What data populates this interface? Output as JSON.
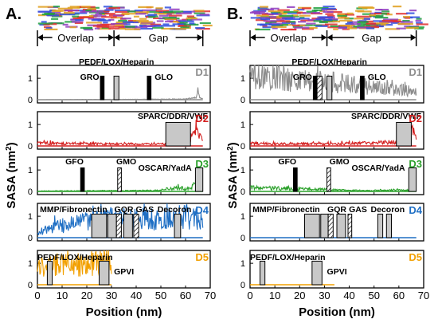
{
  "figure": {
    "panel_labels": [
      "A.",
      "B."
    ],
    "region_labels": {
      "overlap": "Overlap",
      "gap": "Gap"
    },
    "y_axis_label": "SASA (nm",
    "y_axis_label_sup": "2",
    "y_axis_label_end": ")",
    "x_axis_label": "Position (nm)",
    "x_ticks": [
      "0",
      "10",
      "20",
      "30",
      "40",
      "50",
      "60",
      "70"
    ],
    "y_ticks": [
      "0",
      "1"
    ],
    "colors": {
      "D1": "#8c8c8c",
      "D2": "#d42020",
      "D3": "#2aa02a",
      "D4": "#1f6fc4",
      "D5": "#f2a000",
      "box_fill": "#c8c8c8",
      "black": "#000000",
      "microfibril": [
        "#e03030",
        "#3050e0",
        "#20a040",
        "#e0a020",
        "#9040c0"
      ]
    }
  },
  "chart_data": [
    {
      "type": "area",
      "panel": "A.",
      "xlim": [
        0,
        70
      ],
      "ylim": [
        0,
        1.6
      ],
      "xlabel": "Position (nm)",
      "ylabel": "SASA (nm2)",
      "overlap_range": [
        0,
        31
      ],
      "gap_range": [
        31,
        67
      ],
      "rows": [
        {
          "name": "D1",
          "series_extent": [
            0,
            67
          ],
          "profile": [
            [
              0,
              0.0
            ],
            [
              40,
              0.02
            ],
            [
              60,
              0.03
            ],
            [
              64,
              0.1
            ],
            [
              65,
              0.3
            ],
            [
              66,
              0.12
            ],
            [
              67,
              0.05
            ]
          ],
          "annotations": [
            {
              "label": "PEDF/LOX/Heparin",
              "kind": "gray",
              "x0": 31,
              "x1": 33,
              "h": 1.1
            },
            {
              "label": "GRO",
              "kind": "black",
              "x0": 25.5,
              "x1": 27,
              "h": 1.1
            },
            {
              "label": "GLO",
              "kind": "black",
              "x0": 44.5,
              "x1": 46,
              "h": 1.1
            }
          ]
        },
        {
          "name": "D2",
          "series_extent": [
            0,
            67
          ],
          "profile": [
            [
              0,
              0.15
            ],
            [
              10,
              0.12
            ],
            [
              20,
              0.12
            ],
            [
              30,
              0.1
            ],
            [
              40,
              0.08
            ],
            [
              50,
              0.1
            ],
            [
              60,
              0.12
            ],
            [
              63,
              0.5
            ],
            [
              65,
              0.7
            ],
            [
              67,
              0.2
            ]
          ],
          "annotations": [
            {
              "label": "SPARC/DDR/VWF",
              "kind": "gray",
              "x0": 52,
              "x1": 62,
              "h": 1.1
            }
          ]
        },
        {
          "name": "D3",
          "series_extent": [
            0,
            67
          ],
          "profile": [
            [
              0,
              0.02
            ],
            [
              50,
              0.05
            ],
            [
              58,
              0.2
            ],
            [
              60,
              0.1
            ],
            [
              64,
              0.3
            ],
            [
              67,
              0.05
            ]
          ],
          "annotations": [
            {
              "label": "GFO",
              "kind": "black",
              "x0": 17.5,
              "x1": 19,
              "h": 1.1
            },
            {
              "label": "GMO",
              "kind": "hatched",
              "x0": 32.5,
              "x1": 34,
              "h": 1.1
            },
            {
              "label": "OSCAR/YadA",
              "kind": "gray",
              "x0": 64,
              "x1": 67,
              "h": 1.1
            }
          ]
        },
        {
          "name": "D4",
          "series_extent": [
            0,
            67
          ],
          "profile": [
            [
              0,
              0.3
            ],
            [
              10,
              0.6
            ],
            [
              20,
              0.8
            ],
            [
              30,
              1.0
            ],
            [
              40,
              0.9
            ],
            [
              50,
              1.0
            ],
            [
              60,
              1.1
            ],
            [
              67,
              0.8
            ]
          ],
          "annotations": [
            {
              "label": "MMP/Fibronectin",
              "kind": "gray",
              "x0": 22,
              "x1": 28,
              "h": 1.1
            },
            {
              "label": "",
              "kind": "gray",
              "x0": 28.5,
              "x1": 32,
              "h": 1.1
            },
            {
              "label": "GQR",
              "kind": "hatched",
              "x0": 32,
              "x1": 34,
              "h": 1.1
            },
            {
              "label": "",
              "kind": "gray",
              "x0": 35,
              "x1": 38.5,
              "h": 1.1
            },
            {
              "label": "GAS",
              "kind": "hatched",
              "x0": 39,
              "x1": 41,
              "h": 1.1
            },
            {
              "label": "Decoron",
              "kind": "gray",
              "x0": 55.5,
              "x1": 58,
              "h": 1.1
            }
          ]
        },
        {
          "name": "D5",
          "series_extent": [
            0,
            30
          ],
          "profile": [
            [
              0,
              0.9
            ],
            [
              10,
              1.0
            ],
            [
              20,
              1.0
            ],
            [
              25,
              1.1
            ],
            [
              30,
              1.3
            ],
            [
              31,
              0.0
            ]
          ],
          "annotations": [
            {
              "label": "PEDF/LOX/Heparin",
              "kind": "gray",
              "x0": 4,
              "x1": 6,
              "h": 1.1
            },
            {
              "label": "GPVI",
              "kind": "gray",
              "x0": 25,
              "x1": 29,
              "h": 1.1
            }
          ]
        }
      ]
    },
    {
      "type": "area",
      "panel": "B.",
      "xlim": [
        0,
        70
      ],
      "ylim": [
        0,
        1.6
      ],
      "xlabel": "Position (nm)",
      "ylabel": "SASA (nm2)",
      "overlap_range": [
        0,
        31
      ],
      "gap_range": [
        31,
        67
      ],
      "rows": [
        {
          "name": "D1",
          "series_extent": [
            0,
            67
          ],
          "profile": [
            [
              0,
              1.2
            ],
            [
              10,
              1.1
            ],
            [
              20,
              1.0
            ],
            [
              30,
              0.9
            ],
            [
              40,
              0.8
            ],
            [
              50,
              0.6
            ],
            [
              60,
              0.5
            ],
            [
              67,
              0.4
            ]
          ],
          "annotations": [
            {
              "label": "PEDF/LOX/Heparin",
              "kind": "gray",
              "x0": 31,
              "x1": 33,
              "h": 1.1
            },
            {
              "label": "GRO",
              "kind": "black",
              "x0": 25.5,
              "x1": 27,
              "h": 1.1
            },
            {
              "label": "",
              "kind": "hatched",
              "x0": 27,
              "x1": 29,
              "h": 1.1
            },
            {
              "label": "GLO",
              "kind": "black",
              "x0": 44.5,
              "x1": 46,
              "h": 1.1
            }
          ]
        },
        {
          "name": "D2",
          "series_extent": [
            0,
            67
          ],
          "profile": [
            [
              0,
              0.15
            ],
            [
              10,
              0.1
            ],
            [
              20,
              0.1
            ],
            [
              30,
              0.1
            ],
            [
              40,
              0.12
            ],
            [
              50,
              0.15
            ],
            [
              60,
              0.2
            ],
            [
              63,
              0.5
            ],
            [
              65,
              0.8
            ],
            [
              67,
              0.4
            ]
          ],
          "annotations": [
            {
              "label": "SPARC/DDR/VWF",
              "kind": "gray",
              "x0": 59,
              "x1": 65,
              "h": 1.1
            }
          ]
        },
        {
          "name": "D3",
          "series_extent": [
            0,
            67
          ],
          "profile": [
            [
              0,
              0.2
            ],
            [
              10,
              0.15
            ],
            [
              20,
              0.12
            ],
            [
              30,
              0.1
            ],
            [
              40,
              0.05
            ],
            [
              50,
              0.05
            ],
            [
              60,
              0.08
            ],
            [
              67,
              0.05
            ]
          ],
          "annotations": [
            {
              "label": "GFO",
              "kind": "black",
              "x0": 17.5,
              "x1": 19,
              "h": 1.1
            },
            {
              "label": "GMO",
              "kind": "hatched",
              "x0": 31,
              "x1": 32.5,
              "h": 1.1
            },
            {
              "label": "OSCAR/YadA",
              "kind": "gray",
              "x0": 64,
              "x1": 67,
              "h": 1.1
            }
          ]
        },
        {
          "name": "D4",
          "series_extent": [
            0,
            67
          ],
          "profile": [
            [
              0,
              0.0
            ],
            [
              67,
              0.0
            ]
          ],
          "annotations": [
            {
              "label": "MMP/Fibronectin",
              "kind": "gray",
              "x0": 22,
              "x1": 28,
              "h": 1.1
            },
            {
              "label": "",
              "kind": "gray",
              "x0": 28.5,
              "x1": 31.5,
              "h": 1.1
            },
            {
              "label": "GQR",
              "kind": "hatched",
              "x0": 31.5,
              "x1": 33.5,
              "h": 1.1
            },
            {
              "label": "",
              "kind": "gray",
              "x0": 35,
              "x1": 38.5,
              "h": 1.1
            },
            {
              "label": "GAS",
              "kind": "hatched",
              "x0": 39.5,
              "x1": 41,
              "h": 1.1
            },
            {
              "label": "Decoron",
              "kind": "gray",
              "x0": 51.5,
              "x1": 53.5,
              "h": 1.1
            },
            {
              "label": "",
              "kind": "gray",
              "x0": 55,
              "x1": 57,
              "h": 1.1
            }
          ]
        },
        {
          "name": "D5",
          "series_extent": [
            0,
            34
          ],
          "profile": [
            [
              0,
              0.0
            ],
            [
              34,
              0.0
            ]
          ],
          "annotations": [
            {
              "label": "PEDF/LOX/Heparin",
              "kind": "gray",
              "x0": 4,
              "x1": 6,
              "h": 1.1
            },
            {
              "label": "GPVI",
              "kind": "gray",
              "x0": 25,
              "x1": 29,
              "h": 1.1
            }
          ]
        }
      ]
    }
  ]
}
